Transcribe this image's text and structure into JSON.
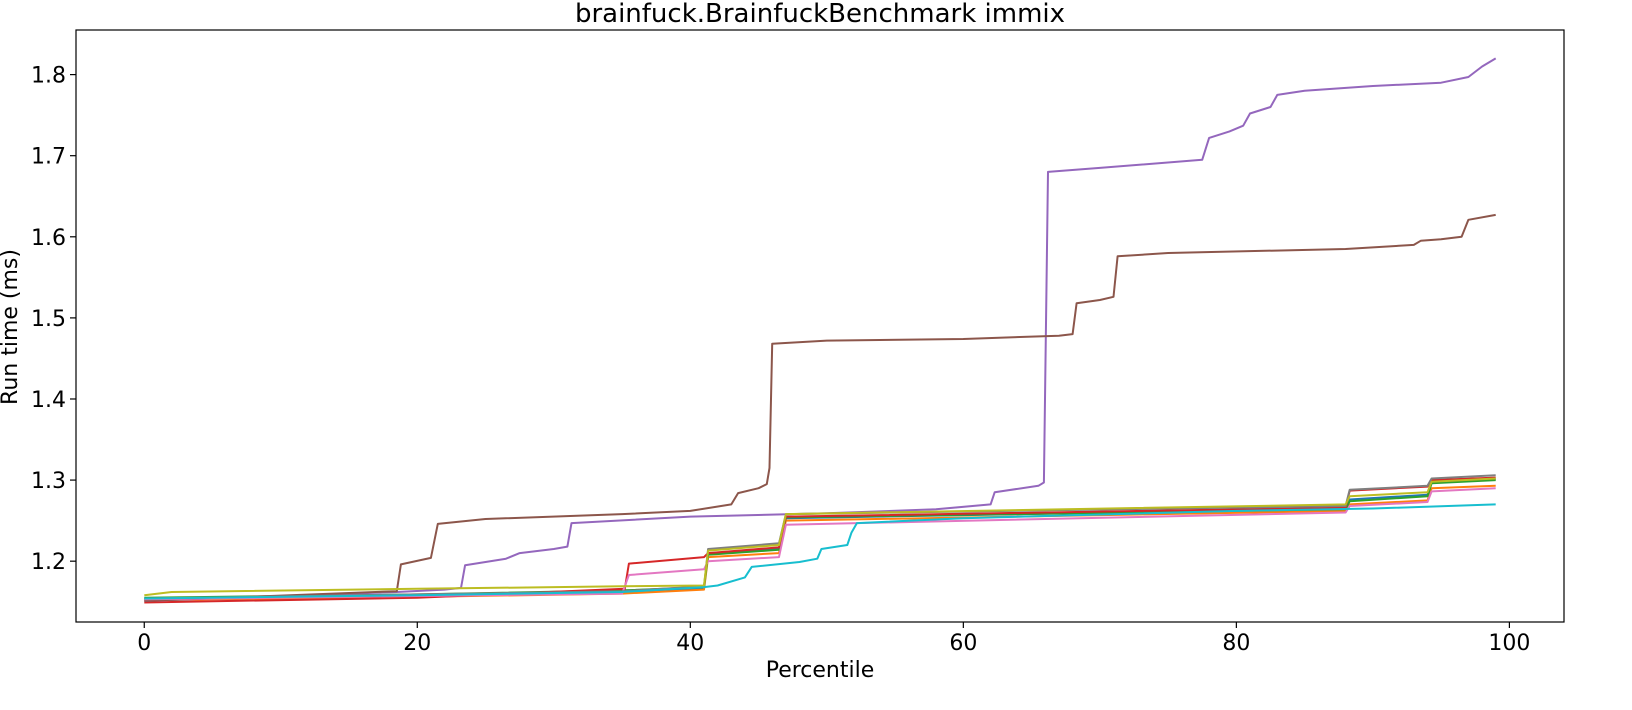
{
  "chart_data": {
    "type": "line",
    "title": "brainfuck.BrainfuckBenchmark immix",
    "xlabel": "Percentile",
    "ylabel": "Run time (ms)",
    "xlim": [
      -5,
      104
    ],
    "ylim": [
      1.125,
      1.855
    ],
    "xticks": [
      0,
      20,
      40,
      60,
      80,
      100
    ],
    "yticks": [
      1.2,
      1.3,
      1.4,
      1.5,
      1.6,
      1.7,
      1.8
    ],
    "xtick_labels": [
      "0",
      "20",
      "40",
      "60",
      "80",
      "100"
    ],
    "ytick_labels": [
      "1.2",
      "1.3",
      "1.4",
      "1.5",
      "1.6",
      "1.7",
      "1.8"
    ],
    "grid": false,
    "legend": "none",
    "series": [
      {
        "color": "#1f77b4",
        "points": [
          [
            0,
            1.153
          ],
          [
            20,
            1.158
          ],
          [
            35,
            1.162
          ],
          [
            41,
            1.166
          ],
          [
            41.3,
            1.209
          ],
          [
            46.5,
            1.216
          ],
          [
            47,
            1.253
          ],
          [
            88,
            1.265
          ],
          [
            88.3,
            1.276
          ],
          [
            94,
            1.282
          ],
          [
            94.3,
            1.297
          ],
          [
            99,
            1.301
          ]
        ]
      },
      {
        "color": "#ff7f0e",
        "points": [
          [
            0,
            1.152
          ],
          [
            20,
            1.156
          ],
          [
            35,
            1.16
          ],
          [
            41,
            1.165
          ],
          [
            41.3,
            1.205
          ],
          [
            46.5,
            1.21
          ],
          [
            47,
            1.25
          ],
          [
            88,
            1.262
          ],
          [
            88.3,
            1.27
          ],
          [
            94,
            1.275
          ],
          [
            94.3,
            1.29
          ],
          [
            99,
            1.293
          ]
        ]
      },
      {
        "color": "#2ca02c",
        "points": [
          [
            0,
            1.155
          ],
          [
            20,
            1.159
          ],
          [
            35,
            1.164
          ],
          [
            41,
            1.168
          ],
          [
            41.3,
            1.208
          ],
          [
            46.5,
            1.214
          ],
          [
            47,
            1.254
          ],
          [
            88,
            1.264
          ],
          [
            88.3,
            1.274
          ],
          [
            94,
            1.28
          ],
          [
            94.3,
            1.296
          ],
          [
            99,
            1.3
          ]
        ]
      },
      {
        "color": "#d62728",
        "points": [
          [
            0,
            1.149
          ],
          [
            20,
            1.155
          ],
          [
            35.2,
            1.166
          ],
          [
            35.5,
            1.197
          ],
          [
            41,
            1.205
          ],
          [
            41.3,
            1.21
          ],
          [
            46.5,
            1.217
          ],
          [
            47,
            1.255
          ],
          [
            88,
            1.266
          ],
          [
            88.3,
            1.287
          ],
          [
            94,
            1.292
          ],
          [
            94.3,
            1.3
          ],
          [
            99,
            1.303
          ]
        ]
      },
      {
        "color": "#9467bd",
        "points": [
          [
            0,
            1.151
          ],
          [
            18.5,
            1.162
          ],
          [
            22,
            1.165
          ],
          [
            23.2,
            1.167
          ],
          [
            23.5,
            1.195
          ],
          [
            26.5,
            1.203
          ],
          [
            27.5,
            1.21
          ],
          [
            30,
            1.215
          ],
          [
            31,
            1.218
          ],
          [
            31.3,
            1.247
          ],
          [
            40,
            1.255
          ],
          [
            50,
            1.259
          ],
          [
            58,
            1.264
          ],
          [
            62,
            1.27
          ],
          [
            62.3,
            1.285
          ],
          [
            65.5,
            1.293
          ],
          [
            65.9,
            1.297
          ],
          [
            66.2,
            1.68
          ],
          [
            70,
            1.685
          ],
          [
            77.5,
            1.695
          ],
          [
            78,
            1.722
          ],
          [
            79.5,
            1.73
          ],
          [
            80.5,
            1.737
          ],
          [
            81,
            1.752
          ],
          [
            82.5,
            1.76
          ],
          [
            83,
            1.775
          ],
          [
            85,
            1.78
          ],
          [
            90,
            1.786
          ],
          [
            95,
            1.79
          ],
          [
            97,
            1.797
          ],
          [
            98,
            1.81
          ],
          [
            99,
            1.82
          ]
        ]
      },
      {
        "color": "#8c564b",
        "points": [
          [
            0,
            1.151
          ],
          [
            18.5,
            1.163
          ],
          [
            18.8,
            1.196
          ],
          [
            21,
            1.204
          ],
          [
            21.5,
            1.246
          ],
          [
            25,
            1.252
          ],
          [
            35,
            1.258
          ],
          [
            40,
            1.262
          ],
          [
            43,
            1.27
          ],
          [
            43.5,
            1.284
          ],
          [
            45,
            1.29
          ],
          [
            45.6,
            1.295
          ],
          [
            45.8,
            1.315
          ],
          [
            46,
            1.468
          ],
          [
            50,
            1.472
          ],
          [
            60,
            1.474
          ],
          [
            67,
            1.478
          ],
          [
            68,
            1.48
          ],
          [
            68.3,
            1.518
          ],
          [
            70,
            1.522
          ],
          [
            71,
            1.526
          ],
          [
            71.3,
            1.576
          ],
          [
            75,
            1.58
          ],
          [
            88,
            1.585
          ],
          [
            93,
            1.59
          ],
          [
            93.5,
            1.595
          ],
          [
            95,
            1.597
          ],
          [
            96.5,
            1.6
          ],
          [
            97,
            1.621
          ],
          [
            99,
            1.627
          ]
        ]
      },
      {
        "color": "#e377c2",
        "points": [
          [
            0,
            1.153
          ],
          [
            20,
            1.157
          ],
          [
            35,
            1.16
          ],
          [
            35.5,
            1.183
          ],
          [
            41,
            1.19
          ],
          [
            41.3,
            1.2
          ],
          [
            46.5,
            1.205
          ],
          [
            47,
            1.245
          ],
          [
            88,
            1.26
          ],
          [
            88.3,
            1.268
          ],
          [
            94,
            1.273
          ],
          [
            94.3,
            1.286
          ],
          [
            99,
            1.29
          ]
        ]
      },
      {
        "color": "#7f7f7f",
        "points": [
          [
            0,
            1.154
          ],
          [
            20,
            1.159
          ],
          [
            35,
            1.163
          ],
          [
            41,
            1.169
          ],
          [
            41.3,
            1.215
          ],
          [
            46.5,
            1.222
          ],
          [
            47,
            1.258
          ],
          [
            88,
            1.268
          ],
          [
            88.3,
            1.288
          ],
          [
            94,
            1.293
          ],
          [
            94.3,
            1.302
          ],
          [
            99,
            1.306
          ]
        ]
      },
      {
        "color": "#bcbd22",
        "points": [
          [
            0,
            1.158
          ],
          [
            2,
            1.162
          ],
          [
            20,
            1.166
          ],
          [
            35,
            1.169
          ],
          [
            41,
            1.17
          ],
          [
            41.3,
            1.213
          ],
          [
            46.5,
            1.22
          ],
          [
            47,
            1.258
          ],
          [
            88,
            1.27
          ],
          [
            88.3,
            1.28
          ],
          [
            94,
            1.285
          ],
          [
            94.3,
            1.298
          ],
          [
            99,
            1.302
          ]
        ]
      },
      {
        "color": "#17becf",
        "points": [
          [
            0,
            1.154
          ],
          [
            20,
            1.158
          ],
          [
            35,
            1.162
          ],
          [
            41,
            1.168
          ],
          [
            42,
            1.17
          ],
          [
            44,
            1.18
          ],
          [
            44.5,
            1.193
          ],
          [
            48,
            1.199
          ],
          [
            49.3,
            1.203
          ],
          [
            49.6,
            1.215
          ],
          [
            51.5,
            1.22
          ],
          [
            51.8,
            1.235
          ],
          [
            52.2,
            1.247
          ],
          [
            60,
            1.253
          ],
          [
            80,
            1.262
          ],
          [
            90,
            1.265
          ],
          [
            99,
            1.27
          ]
        ]
      }
    ]
  }
}
